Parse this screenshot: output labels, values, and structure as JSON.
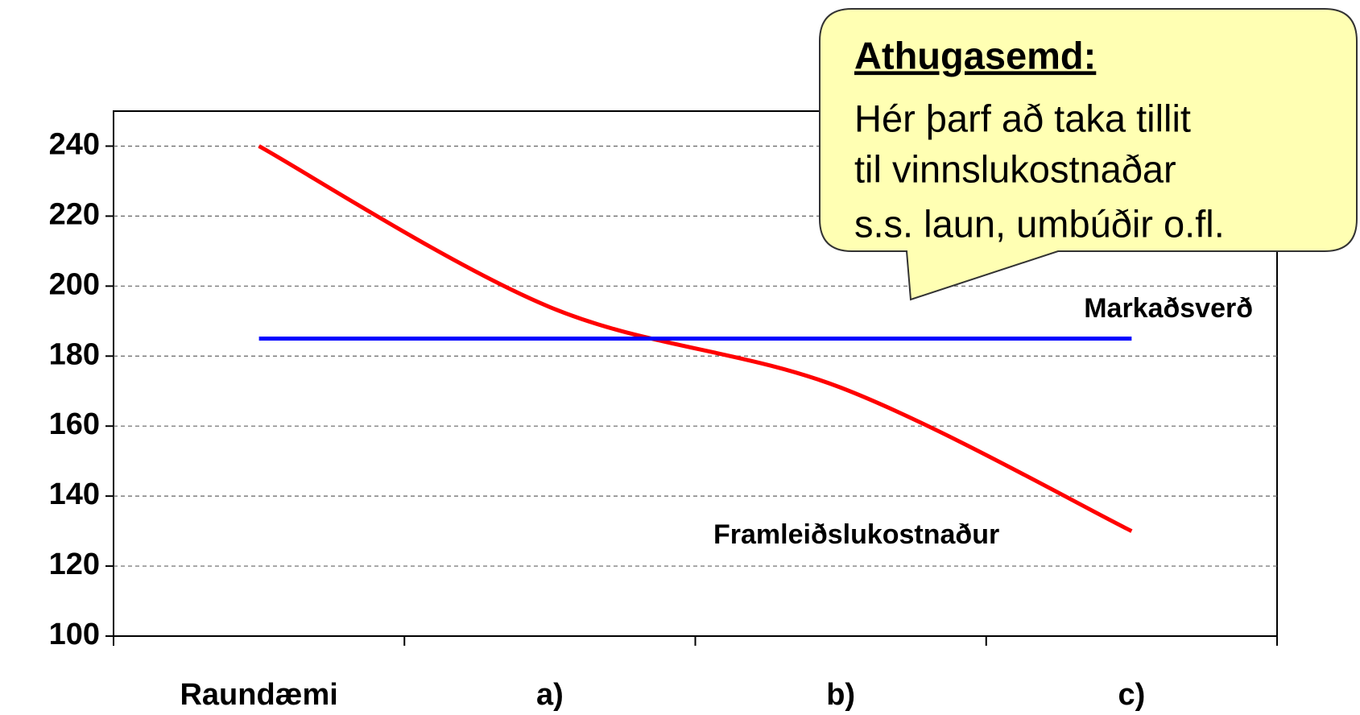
{
  "chart_data": {
    "type": "line",
    "categories": [
      "Raundæmi",
      "a)",
      "b)",
      "c)"
    ],
    "series": [
      {
        "name": "Framleiðslukostnaður",
        "color": "#ff0000",
        "values": [
          240,
          194,
          171,
          130
        ]
      },
      {
        "name": "Markaðsverð",
        "color": "#0000ff",
        "values": [
          185,
          185,
          185,
          185
        ]
      }
    ],
    "ylim": [
      100,
      250
    ],
    "yticks": [
      100,
      120,
      140,
      160,
      180,
      200,
      220,
      240
    ],
    "grid": true,
    "callout": {
      "title": "Athugasemd:",
      "lines": [
        "Hér þarf að taka tillit",
        "til vinnslukostnaðar",
        "s.s. laun, umbúðir o.fl."
      ]
    }
  }
}
